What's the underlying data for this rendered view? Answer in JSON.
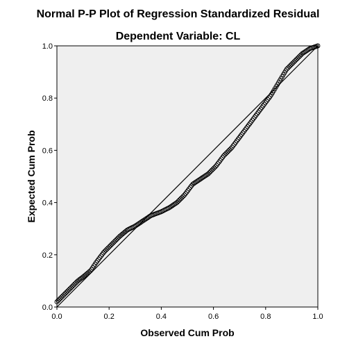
{
  "chart_data": {
    "type": "scatter",
    "title": "Normal P-P Plot of Regression Standardized Residual",
    "subtitle": "Dependent Variable: CL",
    "xlabel": "Observed Cum Prob",
    "ylabel": "Expected Cum Prob",
    "xlim": [
      0,
      1
    ],
    "ylim": [
      0,
      1
    ],
    "x_ticks": [
      "0.0",
      "0.2",
      "0.4",
      "0.6",
      "0.8",
      "1.0"
    ],
    "y_ticks": [
      "0.0",
      "0.2",
      "0.4",
      "0.6",
      "0.8",
      "1.0"
    ],
    "reference_line": {
      "from": [
        0,
        0
      ],
      "to": [
        1,
        1
      ]
    },
    "plot_background": "#efefef",
    "marker": "open-circle",
    "curve": [
      [
        0.0,
        0.02
      ],
      [
        0.02,
        0.04
      ],
      [
        0.05,
        0.07
      ],
      [
        0.08,
        0.1
      ],
      [
        0.1,
        0.115
      ],
      [
        0.13,
        0.14
      ],
      [
        0.15,
        0.17
      ],
      [
        0.18,
        0.21
      ],
      [
        0.21,
        0.24
      ],
      [
        0.24,
        0.27
      ],
      [
        0.27,
        0.295
      ],
      [
        0.3,
        0.31
      ],
      [
        0.33,
        0.33
      ],
      [
        0.36,
        0.35
      ],
      [
        0.4,
        0.365
      ],
      [
        0.43,
        0.38
      ],
      [
        0.46,
        0.4
      ],
      [
        0.49,
        0.43
      ],
      [
        0.52,
        0.47
      ],
      [
        0.55,
        0.49
      ],
      [
        0.58,
        0.51
      ],
      [
        0.61,
        0.54
      ],
      [
        0.64,
        0.58
      ],
      [
        0.67,
        0.61
      ],
      [
        0.7,
        0.65
      ],
      [
        0.73,
        0.69
      ],
      [
        0.76,
        0.73
      ],
      [
        0.79,
        0.77
      ],
      [
        0.82,
        0.81
      ],
      [
        0.85,
        0.86
      ],
      [
        0.88,
        0.91
      ],
      [
        0.91,
        0.94
      ],
      [
        0.94,
        0.97
      ],
      [
        0.97,
        0.99
      ],
      [
        1.0,
        1.0
      ]
    ],
    "point_count": 220
  }
}
